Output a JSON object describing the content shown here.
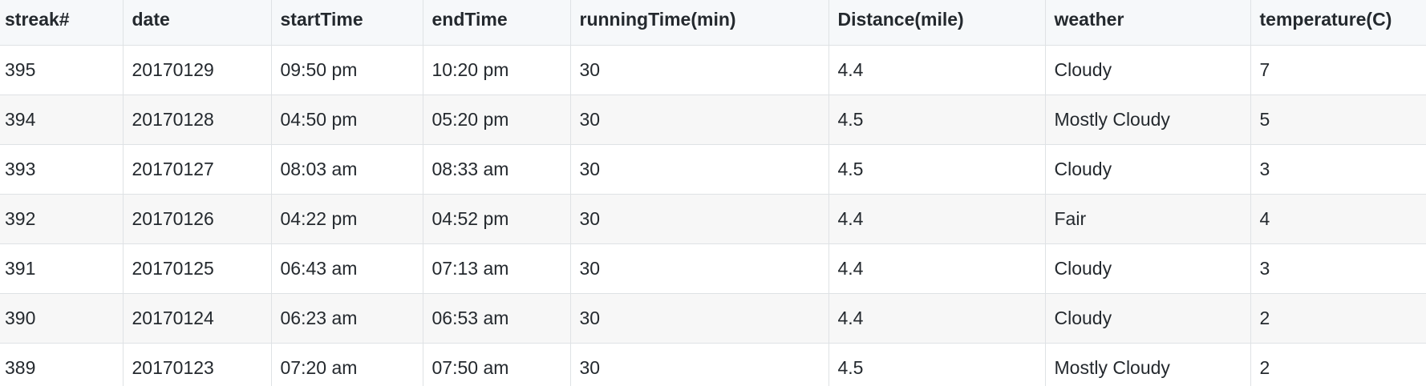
{
  "table": {
    "columns": [
      "streak#",
      "date",
      "startTime",
      "endTime",
      "runningTime(min)",
      "Distance(mile)",
      "weather",
      "temperature(C)"
    ],
    "rows": [
      [
        "395",
        "20170129",
        "09:50 pm",
        "10:20 pm",
        "30",
        "4.4",
        "Cloudy",
        "7"
      ],
      [
        "394",
        "20170128",
        "04:50 pm",
        "05:20 pm",
        "30",
        "4.5",
        "Mostly Cloudy",
        "5"
      ],
      [
        "393",
        "20170127",
        "08:03 am",
        "08:33 am",
        "30",
        "4.5",
        "Cloudy",
        "3"
      ],
      [
        "392",
        "20170126",
        "04:22 pm",
        "04:52 pm",
        "30",
        "4.4",
        "Fair",
        "4"
      ],
      [
        "391",
        "20170125",
        "06:43 am",
        "07:13 am",
        "30",
        "4.4",
        "Cloudy",
        "3"
      ],
      [
        "390",
        "20170124",
        "06:23 am",
        "06:53 am",
        "30",
        "4.4",
        "Cloudy",
        "2"
      ],
      [
        "389",
        "20170123",
        "07:20 am",
        "07:50 am",
        "30",
        "4.5",
        "Mostly Cloudy",
        "2"
      ]
    ]
  },
  "colors": {
    "text": "#24292e",
    "border": "#dfe2e5",
    "header_bg": "#f6f8fa",
    "stripe_bg": "#f7f7f7"
  }
}
